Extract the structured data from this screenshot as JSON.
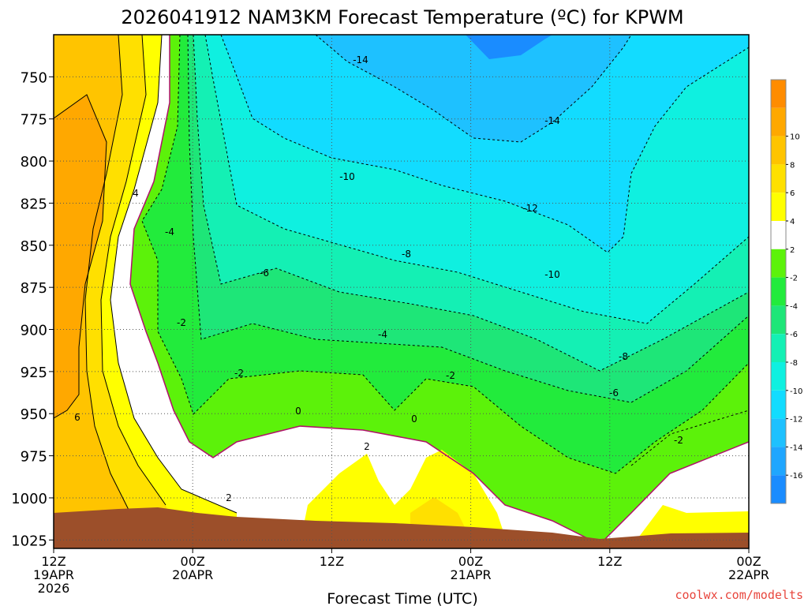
{
  "chart_data": {
    "type": "heatmap",
    "title": "2026041912 NAM3KM Forecast Temperature (ºC) for KPWM",
    "xlabel": "Forecast Time (UTC)",
    "ylabel": "",
    "y_ticks": [
      "750",
      "775",
      "800",
      "825",
      "850",
      "875",
      "900",
      "925",
      "950",
      "975",
      "1000",
      "1025"
    ],
    "x_ticks": [
      {
        "line1": "12Z",
        "line2": "19APR",
        "line3": "2026"
      },
      {
        "line1": "00Z",
        "line2": "20APR",
        "line3": ""
      },
      {
        "line1": "12Z",
        "line2": "",
        "line3": ""
      },
      {
        "line1": "00Z",
        "line2": "21APR",
        "line3": ""
      },
      {
        "line1": "12Z",
        "line2": "",
        "line3": ""
      },
      {
        "line1": "00Z",
        "line2": "22APR",
        "line3": ""
      }
    ],
    "colorbar": [
      {
        "label": "",
        "color": "#1a8cff"
      },
      {
        "label": "-16",
        "color": "#1fa6ff"
      },
      {
        "label": "-14",
        "color": "#1ec1ff"
      },
      {
        "label": "-12",
        "color": "#12dcff"
      },
      {
        "label": "-10",
        "color": "#0ff0e0"
      },
      {
        "label": "-8",
        "color": "#14f0b4"
      },
      {
        "label": "-6",
        "color": "#1ee678"
      },
      {
        "label": "-4",
        "color": "#22eb3c"
      },
      {
        "label": "-2",
        "color": "#5cf20a"
      },
      {
        "label": "2",
        "color": "#ffffff"
      },
      {
        "label": "4",
        "color": "#ffff00"
      },
      {
        "label": "6",
        "color": "#ffe000"
      },
      {
        "label": "8",
        "color": "#ffc400"
      },
      {
        "label": "10",
        "color": "#ffa800"
      },
      {
        "label": "",
        "color": "#ff8c00"
      }
    ],
    "contour_labels": [
      "-14",
      "-14",
      "-10",
      "-12",
      "-8",
      "-10",
      "-6",
      "-4",
      "-4",
      "-2",
      "-2",
      "-2",
      "-8",
      "-6",
      "-2",
      "0",
      "0",
      "2",
      "2",
      "4",
      "6"
    ],
    "ground_color": "#9c4f2a",
    "xlim": [
      "12Z 19APR",
      "00Z 22APR"
    ],
    "ylim": [
      1030,
      725
    ]
  },
  "credit": "coolwx.com/modelts"
}
